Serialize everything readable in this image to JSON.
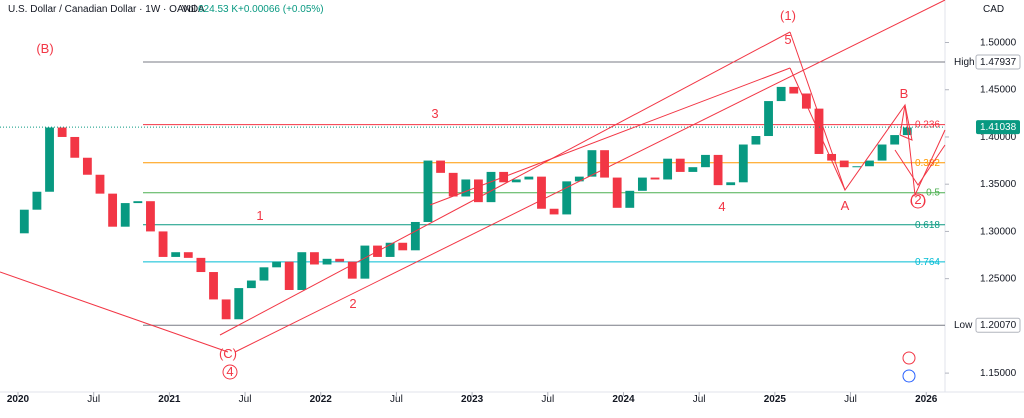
{
  "chart_data": {
    "type": "candlestick",
    "title": "U.S. Dollar / Canadian Dollar · 1W · OANDA",
    "volume_label": "Vol",
    "volume": "624.53 K",
    "change": "+0.00066 (+0.05%)",
    "currency": "CAD",
    "x": [
      "2020-01",
      "2020-02",
      "2020-03",
      "2020-04",
      "2020-05",
      "2020-06",
      "2020-07",
      "2020-08",
      "2020-09",
      "2020-10",
      "2020-11",
      "2020-12",
      "2021-01",
      "2021-02",
      "2021-03",
      "2021-04",
      "2021-05",
      "2021-06",
      "2021-07",
      "2021-08",
      "2021-09",
      "2021-10",
      "2021-11",
      "2021-12",
      "2022-01",
      "2022-02",
      "2022-03",
      "2022-04",
      "2022-05",
      "2022-06",
      "2022-07",
      "2022-08",
      "2022-09",
      "2022-10",
      "2022-11",
      "2022-12",
      "2023-01",
      "2023-02",
      "2023-03",
      "2023-04",
      "2023-05",
      "2023-06",
      "2023-07",
      "2023-08",
      "2023-09",
      "2023-10",
      "2023-11",
      "2023-12",
      "2024-01",
      "2024-02",
      "2024-03",
      "2024-04",
      "2024-05",
      "2024-06",
      "2024-07",
      "2024-08",
      "2024-09",
      "2024-10",
      "2024-11",
      "2024-12",
      "2025-01",
      "2025-02",
      "2025-03",
      "2025-04",
      "2025-05",
      "2025-06",
      "2025-07",
      "2025-08",
      "2025-09",
      "2025-10",
      "2025-11"
    ],
    "open": 1.298,
    "values": [
      1.323,
      1.342,
      1.41,
      1.4,
      1.378,
      1.36,
      1.34,
      1.305,
      1.33,
      1.332,
      1.3,
      1.273,
      1.278,
      1.272,
      1.257,
      1.228,
      1.207,
      1.24,
      1.248,
      1.262,
      1.268,
      1.238,
      1.278,
      1.265,
      1.271,
      1.268,
      1.25,
      1.285,
      1.273,
      1.288,
      1.28,
      1.31,
      1.375,
      1.362,
      1.337,
      1.355,
      1.331,
      1.363,
      1.352,
      1.355,
      1.358,
      1.324,
      1.318,
      1.353,
      1.358,
      1.386,
      1.357,
      1.325,
      1.343,
      1.357,
      1.355,
      1.377,
      1.363,
      1.368,
      1.381,
      1.349,
      1.352,
      1.392,
      1.401,
      1.438,
      1.453,
      1.446,
      1.43,
      1.382,
      1.375,
      1.368,
      1.369,
      1.375,
      1.392,
      1.402,
      1.41
    ],
    "up_color": "#089981",
    "down_color": "#f23645",
    "xlim": [
      "2020-01",
      "2025-12"
    ],
    "xticks": [
      {
        "value": "2020-01",
        "label": "2020"
      },
      {
        "value": "2020-07",
        "label": "Jul"
      },
      {
        "value": "2021-01",
        "label": "2021"
      },
      {
        "value": "2021-07",
        "label": "Jul"
      },
      {
        "value": "2022-01",
        "label": "2022"
      },
      {
        "value": "2022-07",
        "label": "Jul"
      },
      {
        "value": "2023-01",
        "label": "2023"
      },
      {
        "value": "2023-07",
        "label": "Jul"
      },
      {
        "value": "2024-01",
        "label": "2024"
      },
      {
        "value": "2024-07",
        "label": "Jul"
      },
      {
        "value": "2025-01",
        "label": "2025"
      },
      {
        "value": "2025-07",
        "label": "Jul"
      },
      {
        "value": "2026-01",
        "label": "2026"
      }
    ],
    "ylim": [
      1.13,
      1.545
    ],
    "yticks": [
      {
        "value": 1.15,
        "label": "1.15000"
      },
      {
        "value": 1.25,
        "label": "1.25000"
      },
      {
        "value": 1.3,
        "label": "1.30000"
      },
      {
        "value": 1.35,
        "label": "1.35000"
      },
      {
        "value": 1.4,
        "label": "1.40000"
      },
      {
        "value": 1.45,
        "label": "1.45000"
      },
      {
        "value": 1.5,
        "label": "1.50000"
      }
    ],
    "levels": [
      {
        "name": "High",
        "value": 1.47937,
        "color": "#787b86"
      },
      {
        "name": "0.236",
        "value": 1.413,
        "color": "#f23645"
      },
      {
        "name": "0.382",
        "value": 1.3727,
        "color": "#ff9800"
      },
      {
        "name": "0.5",
        "value": 1.341,
        "color": "#4caf50"
      },
      {
        "name": "0.618",
        "value": 1.307,
        "color": "#089981"
      },
      {
        "name": "0.764",
        "value": 1.2677,
        "color": "#00bcd4"
      },
      {
        "name": "Low",
        "value": {
          "value": 1.2007,
          "label": "1.20070"
        },
        "color": "#787b86"
      }
    ],
    "last_price": 1.41038,
    "wave_labels": [
      "(1)",
      "5",
      "(B)",
      "3",
      "1",
      "2",
      "4",
      "A",
      "B",
      "(2)",
      "(C)",
      "4"
    ]
  }
}
